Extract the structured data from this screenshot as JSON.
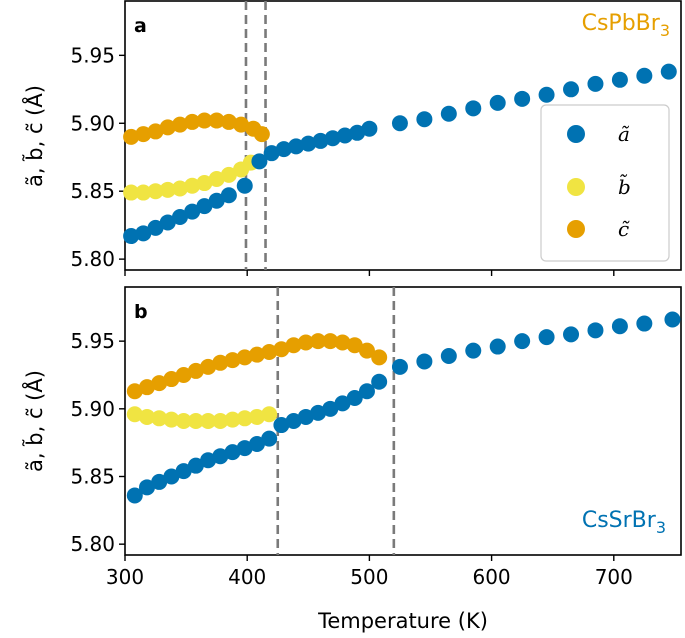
{
  "chart_data": [
    {
      "type": "scatter",
      "panel_label": "a",
      "compound": "CsPbBr",
      "compound_subscript": "3",
      "compound_color": "#E69F00",
      "ylabel": "ã, b̃, c̃ (Å)",
      "xlim": [
        300,
        755
      ],
      "ylim": [
        5.792,
        5.99
      ],
      "yticks": [
        5.8,
        5.85,
        5.9,
        5.95
      ],
      "ytick_labels": [
        "5.80",
        "5.85",
        "5.90",
        "5.95"
      ],
      "xticks": [
        300,
        400,
        500,
        600,
        700
      ],
      "vlines": [
        399,
        415
      ],
      "legend": {
        "position": "right",
        "entries": [
          "ã",
          "b̃",
          "c̃"
        ]
      },
      "series": [
        {
          "name": "ã",
          "color": "#0072B2",
          "x": [
            305,
            315,
            325,
            335,
            345,
            355,
            365,
            375,
            385,
            398,
            410,
            420,
            430,
            440,
            450,
            460,
            470,
            480,
            490,
            500,
            525,
            545,
            565,
            585,
            605,
            625,
            645,
            665,
            685,
            705,
            725,
            745
          ],
          "y": [
            5.817,
            5.819,
            5.823,
            5.827,
            5.831,
            5.835,
            5.839,
            5.843,
            5.847,
            5.854,
            5.872,
            5.878,
            5.881,
            5.883,
            5.885,
            5.887,
            5.889,
            5.891,
            5.893,
            5.896,
            5.9,
            5.903,
            5.907,
            5.911,
            5.915,
            5.918,
            5.921,
            5.925,
            5.929,
            5.932,
            5.935,
            5.938
          ]
        },
        {
          "name": "b̃",
          "color": "#F0E442",
          "x": [
            305,
            315,
            325,
            335,
            345,
            355,
            365,
            375,
            385,
            395,
            403
          ],
          "y": [
            5.849,
            5.849,
            5.85,
            5.851,
            5.852,
            5.854,
            5.856,
            5.859,
            5.862,
            5.866,
            5.871
          ]
        },
        {
          "name": "c̃",
          "color": "#E69F00",
          "x": [
            305,
            315,
            325,
            335,
            345,
            355,
            365,
            375,
            385,
            395,
            405,
            412
          ],
          "y": [
            5.89,
            5.892,
            5.894,
            5.897,
            5.899,
            5.901,
            5.902,
            5.902,
            5.901,
            5.899,
            5.896,
            5.892
          ]
        }
      ]
    },
    {
      "type": "scatter",
      "panel_label": "b",
      "compound": "CsSrBr",
      "compound_subscript": "3",
      "compound_color": "#0072B2",
      "ylabel": "ã, b̃, c̃ (Å)",
      "xlabel": "Temperature (K)",
      "xlim": [
        300,
        755
      ],
      "ylim": [
        5.792,
        5.99
      ],
      "yticks": [
        5.8,
        5.85,
        5.9,
        5.95
      ],
      "ytick_labels": [
        "5.80",
        "5.85",
        "5.90",
        "5.95"
      ],
      "xticks": [
        300,
        400,
        500,
        600,
        700
      ],
      "xtick_labels": [
        "300",
        "400",
        "500",
        "600",
        "700"
      ],
      "vlines": [
        425,
        520
      ],
      "series": [
        {
          "name": "ã",
          "color": "#0072B2",
          "x": [
            308,
            318,
            328,
            338,
            348,
            358,
            368,
            378,
            388,
            398,
            408,
            418,
            428,
            438,
            448,
            458,
            468,
            478,
            488,
            498,
            508,
            525,
            545,
            565,
            585,
            605,
            625,
            645,
            665,
            685,
            705,
            725,
            748
          ],
          "y": [
            5.836,
            5.842,
            5.846,
            5.85,
            5.854,
            5.858,
            5.862,
            5.865,
            5.868,
            5.871,
            5.874,
            5.878,
            5.888,
            5.891,
            5.894,
            5.897,
            5.9,
            5.904,
            5.908,
            5.913,
            5.92,
            5.931,
            5.935,
            5.939,
            5.943,
            5.946,
            5.95,
            5.953,
            5.955,
            5.958,
            5.961,
            5.963,
            5.966
          ]
        },
        {
          "name": "b̃",
          "color": "#F0E442",
          "x": [
            308,
            318,
            328,
            338,
            348,
            358,
            368,
            378,
            388,
            398,
            408,
            418
          ],
          "y": [
            5.896,
            5.894,
            5.893,
            5.892,
            5.891,
            5.891,
            5.891,
            5.891,
            5.892,
            5.893,
            5.894,
            5.896
          ]
        },
        {
          "name": "c̃",
          "color": "#E69F00",
          "x": [
            308,
            318,
            328,
            338,
            348,
            358,
            368,
            378,
            388,
            398,
            408,
            418,
            428,
            438,
            448,
            458,
            468,
            478,
            488,
            498,
            508
          ],
          "y": [
            5.913,
            5.916,
            5.919,
            5.922,
            5.925,
            5.928,
            5.931,
            5.934,
            5.936,
            5.938,
            5.94,
            5.942,
            5.944,
            5.947,
            5.949,
            5.95,
            5.95,
            5.949,
            5.947,
            5.943,
            5.938
          ]
        }
      ]
    }
  ]
}
